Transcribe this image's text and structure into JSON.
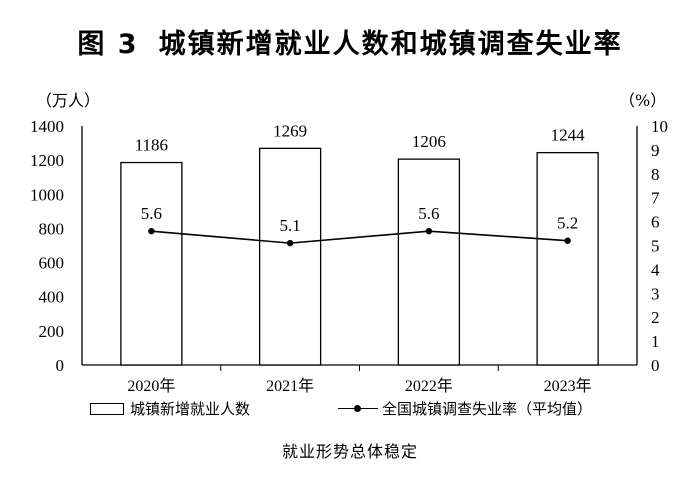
{
  "title": {
    "figure": "图 3",
    "text": "城镇新增就业人数和城镇调查失业率"
  },
  "units": {
    "left": "（万人）",
    "right": "（%）"
  },
  "subtitle": "就业形势总体稳定",
  "chart_data": {
    "type": "bar",
    "categories": [
      "2020年",
      "2021年",
      "2022年",
      "2023年"
    ],
    "series": [
      {
        "name": "城镇新增就业人数",
        "type": "bar",
        "axis": "left",
        "values": [
          1186,
          1269,
          1206,
          1244
        ]
      },
      {
        "name": "全国城镇调查失业率（平均值）",
        "type": "line",
        "axis": "right",
        "values": [
          5.6,
          5.1,
          5.6,
          5.2
        ]
      }
    ],
    "y_left": {
      "range": [
        0,
        1400
      ],
      "ticks": [
        0,
        200,
        400,
        600,
        800,
        1000,
        1200,
        1400
      ]
    },
    "y_right": {
      "range": [
        0,
        10
      ],
      "ticks": [
        0,
        1,
        2,
        3,
        4,
        5,
        6,
        7,
        8,
        9,
        10
      ]
    },
    "grid": false,
    "legend_position": "bottom"
  }
}
